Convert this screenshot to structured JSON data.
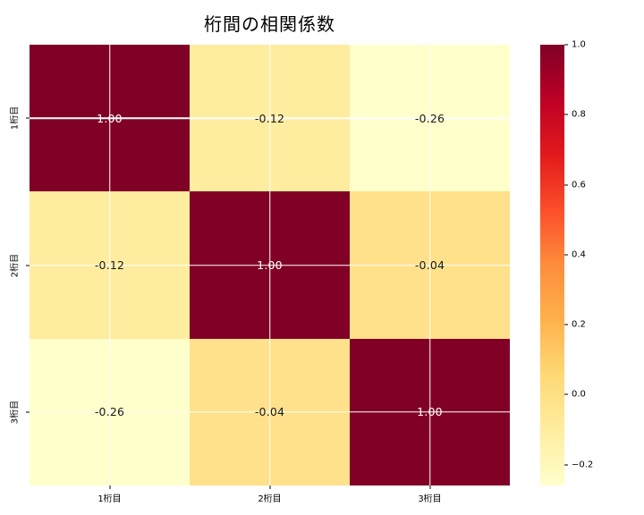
{
  "figure": {
    "background": "#ffffff"
  },
  "chart_data": {
    "type": "heatmap",
    "title": "桁間の相関係数",
    "x_categories": [
      "1桁目",
      "2桁目",
      "3桁目"
    ],
    "y_categories": [
      "1桁目",
      "2桁目",
      "3桁目"
    ],
    "values": [
      [
        1.0,
        -0.12,
        -0.26
      ],
      [
        -0.12,
        1.0,
        -0.04
      ],
      [
        -0.26,
        -0.04,
        1.0
      ]
    ],
    "cell_labels": [
      [
        "1.00",
        "-0.12",
        "-0.26"
      ],
      [
        "-0.12",
        "1.00",
        "-0.04"
      ],
      [
        "-0.26",
        "-0.04",
        "1.00"
      ]
    ],
    "cell_colors": [
      [
        "#800026",
        "#feec9f",
        "#ffffcc"
      ],
      [
        "#feec9f",
        "#800026",
        "#fee18a"
      ],
      [
        "#ffffcc",
        "#fee18a",
        "#800026"
      ]
    ],
    "cell_text_colors": [
      [
        "#ffffff",
        "#1a1a1a",
        "#1a1a1a"
      ],
      [
        "#1a1a1a",
        "#ffffff",
        "#1a1a1a"
      ],
      [
        "#1a1a1a",
        "#1a1a1a",
        "#ffffff"
      ]
    ],
    "colormap": "YlOrRd",
    "vmin": -0.26,
    "vmax": 1.0,
    "grid": true,
    "grid_color": "#ffffff",
    "legend_position": "right-colorbar",
    "colorbar": {
      "tick_labels": [
        "1.0",
        "0.8",
        "0.6",
        "0.4",
        "0.2",
        "0.0",
        "−0.2"
      ],
      "tick_values": [
        1.0,
        0.8,
        0.6,
        0.4,
        0.2,
        0.0,
        -0.2
      ],
      "gradient_stops_top_to_bottom": [
        {
          "color": "#800026",
          "pos": 0
        },
        {
          "color": "#bd0026",
          "pos": 12.5
        },
        {
          "color": "#e31a1c",
          "pos": 25
        },
        {
          "color": "#fc4e2a",
          "pos": 37.5
        },
        {
          "color": "#fd8d3c",
          "pos": 50
        },
        {
          "color": "#feb24c",
          "pos": 62.5
        },
        {
          "color": "#fed976",
          "pos": 75
        },
        {
          "color": "#ffeda0",
          "pos": 87.5
        },
        {
          "color": "#ffffcc",
          "pos": 100
        }
      ]
    }
  }
}
